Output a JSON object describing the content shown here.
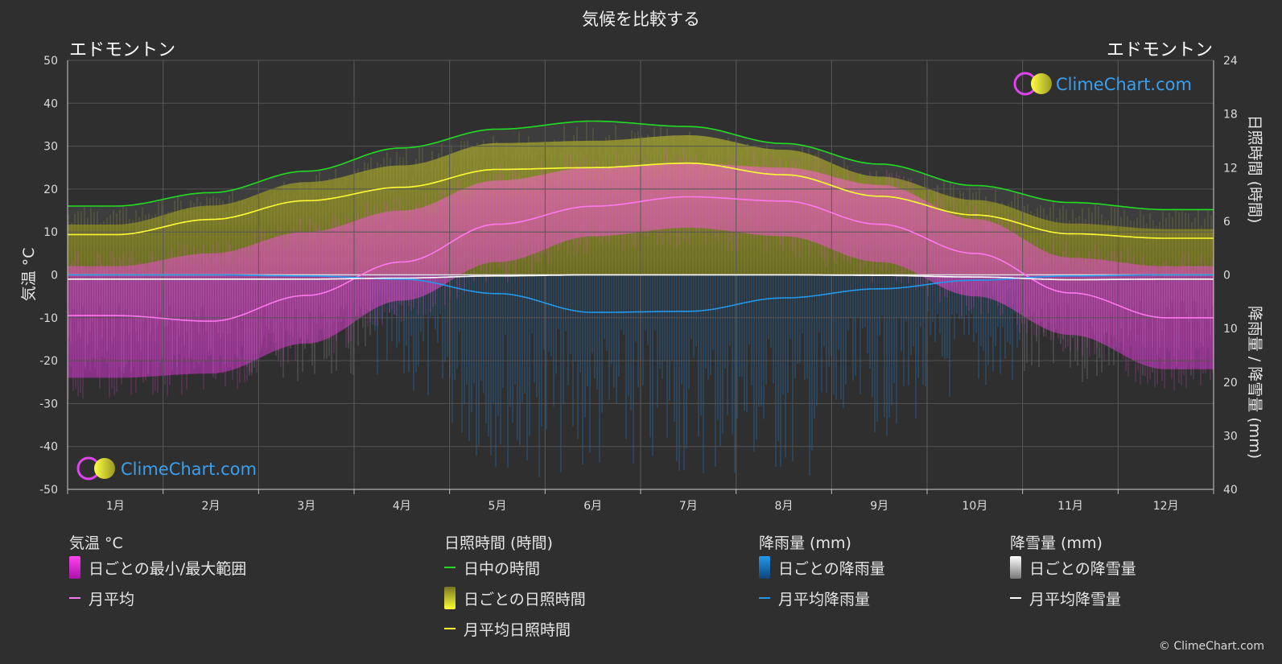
{
  "title": "気候を比較する",
  "location_left": "エドモントン",
  "location_right": "エドモントン",
  "watermark": "ClimeChart.com",
  "copyright": "© ClimeChart.com",
  "chart_data": {
    "type": "line",
    "title": "気候を比較する",
    "categories": [
      "1月",
      "2月",
      "3月",
      "4月",
      "5月",
      "6月",
      "7月",
      "8月",
      "9月",
      "10月",
      "11月",
      "12月"
    ],
    "y_left": {
      "label": "気温 °C",
      "range": [
        -50,
        50
      ],
      "ticks": [
        50,
        40,
        30,
        20,
        10,
        0,
        -10,
        -20,
        -30,
        -40,
        -50
      ]
    },
    "y_right_top": {
      "label": "日照時間 (時間)",
      "range": [
        0,
        24
      ],
      "ticks": [
        24,
        18,
        12,
        6,
        0
      ]
    },
    "y_right_bottom": {
      "label": "降雨量 / 降雪量 (mm)",
      "range": [
        0,
        40
      ],
      "ticks": [
        10,
        20,
        30,
        40
      ]
    },
    "grid": true,
    "series": [
      {
        "name": "日中の時間",
        "unit": "hours",
        "color": "#22dd22",
        "values": [
          7.7,
          9.2,
          11.6,
          14.2,
          16.3,
          17.2,
          16.6,
          14.7,
          12.4,
          10.0,
          8.1,
          7.3
        ]
      },
      {
        "name": "月平均日照時間",
        "unit": "hours",
        "color": "#ffff33",
        "values": [
          4.5,
          6.2,
          8.3,
          9.8,
          11.8,
          12.0,
          12.5,
          11.2,
          8.8,
          6.7,
          4.6,
          4.1
        ]
      },
      {
        "name": "月平均",
        "unit": "°C",
        "color": "#ff77ee",
        "values": [
          -9.5,
          -10.8,
          -4.8,
          3.0,
          11.8,
          16.0,
          18.2,
          17.2,
          11.8,
          5.0,
          -4.2,
          -10.0
        ]
      },
      {
        "name": "月平均降雨量",
        "unit": "mm",
        "color": "#2299ee",
        "values": [
          0.0,
          0.0,
          0.2,
          0.8,
          3.5,
          7.0,
          6.8,
          4.3,
          2.6,
          1.0,
          0.2,
          0.0
        ]
      },
      {
        "name": "月平均降雪量",
        "unit": "mm",
        "color": "#ffffff",
        "values": [
          0.8,
          0.8,
          0.8,
          0.6,
          0.2,
          0.0,
          0.0,
          0.0,
          0.1,
          0.4,
          0.9,
          0.8
        ]
      },
      {
        "name": "日ごとの最小/最大範囲",
        "unit": "°C",
        "min": [
          -24,
          -23,
          -16,
          -6,
          3,
          9,
          11,
          9,
          3,
          -5,
          -14,
          -22
        ],
        "max": [
          2,
          5,
          10,
          15,
          22,
          25,
          26,
          25,
          21,
          13,
          4,
          2
        ]
      }
    ]
  },
  "legend": {
    "temperature": {
      "heading": "気温 °C",
      "range_label": "日ごとの最小/最大範囲",
      "avg_label": "月平均"
    },
    "sunshine": {
      "heading": "日照時間 (時間)",
      "daylight_label": "日中の時間",
      "daily_label": "日ごとの日照時間",
      "avg_label": "月平均日照時間"
    },
    "rain": {
      "heading": "降雨量 (mm)",
      "daily_label": "日ごとの降雨量",
      "avg_label": "月平均降雨量"
    },
    "snow": {
      "heading": "降雪量 (mm)",
      "daily_label": "日ごとの降雪量",
      "avg_label": "月平均降雪量"
    }
  },
  "colors": {
    "background": "#2f2f2f",
    "daylight": "#22dd22",
    "sunshine": "#ffff33",
    "temperature": "#ff77ee",
    "rain": "#2299ee",
    "snow": "#ffffff"
  }
}
